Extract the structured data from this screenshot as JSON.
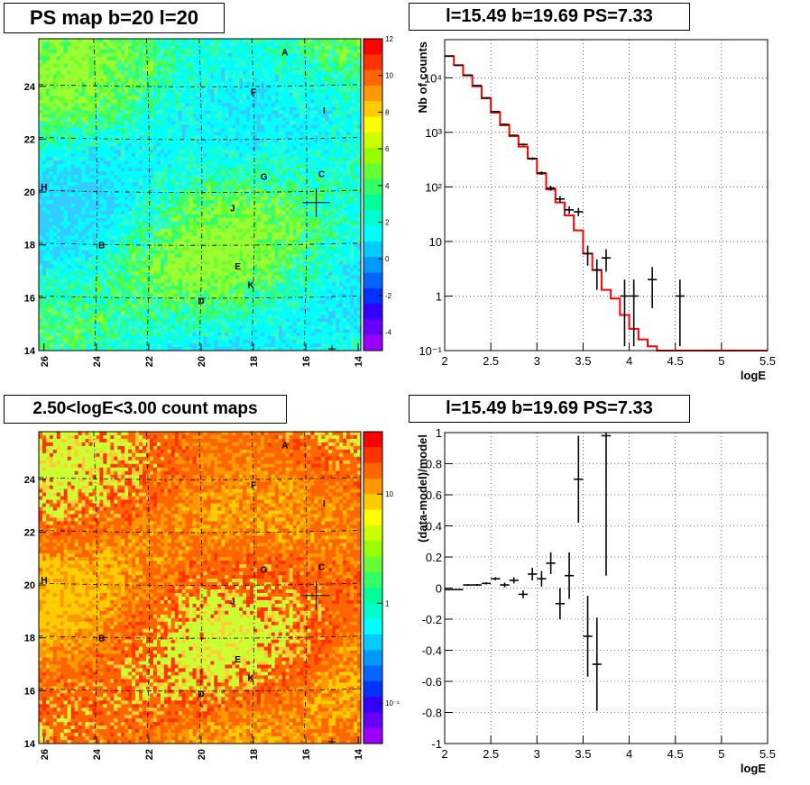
{
  "titles": {
    "map_top": "PS map b=20 l=20",
    "spectrum": "l=15.49 b=19.69 PS=7.33",
    "map_bottom": "2.50<logE<3.00 count maps",
    "residual": "l=15.49 b=19.69 PS=7.33"
  },
  "chart_data": [
    {
      "type": "heatmap",
      "name": "ps-map",
      "title": "PS map b=20 l=20",
      "x_ticks": [
        "26",
        "24",
        "22",
        "20",
        "18",
        "16",
        "14"
      ],
      "y_ticks": [
        "14",
        "16",
        "18",
        "20",
        "22",
        "24"
      ],
      "xlim": [
        26.2,
        13.9
      ],
      "ylim": [
        14,
        25.8
      ],
      "colorbar": {
        "min": -5,
        "max": 12,
        "ticks": [
          "12",
          "10",
          "8",
          "6",
          "4",
          "2",
          "0",
          "-2",
          "-4"
        ],
        "scale": "linear"
      },
      "dominant_colors": [
        "#00ffff",
        "#33ff66",
        "#66ff33"
      ],
      "markers": {
        "cross": [
          15.6,
          19.6
        ],
        "small_cross": [
          15.0,
          14.0
        ]
      },
      "labels": [
        {
          "text": "A",
          "l": 16.8,
          "b": 25.3
        },
        {
          "text": "F",
          "l": 18.0,
          "b": 23.8
        },
        {
          "text": "I",
          "l": 15.3,
          "b": 23.1
        },
        {
          "text": "C",
          "l": 15.4,
          "b": 20.7
        },
        {
          "text": "G",
          "l": 17.6,
          "b": 20.6
        },
        {
          "text": "H",
          "l": 26.0,
          "b": 20.2
        },
        {
          "text": "J",
          "l": 18.8,
          "b": 19.4
        },
        {
          "text": "B",
          "l": 23.8,
          "b": 18.0
        },
        {
          "text": "E",
          "l": 18.6,
          "b": 17.2
        },
        {
          "text": "K",
          "l": 18.1,
          "b": 16.5
        },
        {
          "text": "D",
          "l": 20.0,
          "b": 15.9
        }
      ]
    },
    {
      "type": "line",
      "name": "spectrum",
      "title": "l=15.49 b=19.69 PS=7.33",
      "xlabel": "logE",
      "ylabel": "Nb of counts",
      "yscale": "log",
      "xlim": [
        2,
        5.5
      ],
      "ylim": [
        0.1,
        50000
      ],
      "x_ticks": [
        "2",
        "2.5",
        "3",
        "3.5",
        "4",
        "4.5",
        "5",
        "5.5"
      ],
      "y_ticks": [
        {
          "v": 0.1,
          "label": "10⁻¹"
        },
        {
          "v": 1,
          "label": "1"
        },
        {
          "v": 10,
          "label": "10"
        },
        {
          "v": 100,
          "label": "10²"
        },
        {
          "v": 1000,
          "label": "10³"
        },
        {
          "v": 10000,
          "label": "10⁴"
        }
      ],
      "grid": true,
      "series": [
        {
          "color": "#ff0000",
          "kind": "step",
          "bin_width": 0.1,
          "x": [
            2.05,
            2.15,
            2.25,
            2.35,
            2.45,
            2.55,
            2.65,
            2.75,
            2.85,
            2.95,
            3.05,
            3.15,
            3.25,
            3.35,
            3.45,
            3.55,
            3.65,
            3.75,
            3.85,
            3.95,
            4.05,
            4.15,
            4.25,
            4.35,
            4.45,
            4.55,
            4.65,
            4.75,
            4.85,
            4.95,
            5.05,
            5.15,
            5.25,
            5.35,
            5.45
          ],
          "values": [
            25000,
            17000,
            11000,
            7000,
            4200,
            2300,
            1350,
            850,
            550,
            330,
            175,
            90,
            52,
            30,
            16,
            6,
            3,
            1.3,
            0.9,
            0.45,
            0.25,
            0.16,
            0.12,
            0.1,
            0.1,
            0.1,
            0.1,
            0.1,
            0.1,
            0.1,
            0.1,
            0.1,
            0.1,
            0.1,
            0.1
          ]
        },
        {
          "color": "#000000",
          "kind": "errorbar",
          "points": [
            {
              "x": 2.05,
              "y": 25000,
              "lo": 24800,
              "hi": 25200
            },
            {
              "x": 2.15,
              "y": 17000,
              "lo": 16870,
              "hi": 17130
            },
            {
              "x": 2.25,
              "y": 11200,
              "lo": 11090,
              "hi": 11310
            },
            {
              "x": 2.35,
              "y": 7200,
              "lo": 7110,
              "hi": 7290
            },
            {
              "x": 2.45,
              "y": 4300,
              "lo": 4230,
              "hi": 4370
            },
            {
              "x": 2.55,
              "y": 2400,
              "lo": 2350,
              "hi": 2450
            },
            {
              "x": 2.65,
              "y": 1400,
              "lo": 1360,
              "hi": 1440
            },
            {
              "x": 2.75,
              "y": 880,
              "lo": 850,
              "hi": 910
            },
            {
              "x": 2.85,
              "y": 600,
              "lo": 575,
              "hi": 625
            },
            {
              "x": 2.95,
              "y": 330,
              "lo": 312,
              "hi": 348
            },
            {
              "x": 3.05,
              "y": 180,
              "lo": 167,
              "hi": 193
            },
            {
              "x": 3.15,
              "y": 95,
              "lo": 85,
              "hi": 105
            },
            {
              "x": 3.25,
              "y": 60,
              "lo": 52,
              "hi": 68
            },
            {
              "x": 3.35,
              "y": 38,
              "lo": 32,
              "hi": 44
            },
            {
              "x": 3.45,
              "y": 35,
              "lo": 29,
              "hi": 41
            },
            {
              "x": 3.55,
              "y": 6,
              "lo": 3.6,
              "hi": 8.4
            },
            {
              "x": 3.65,
              "y": 3,
              "lo": 1.3,
              "hi": 4.7
            },
            {
              "x": 3.75,
              "y": 5,
              "lo": 2.8,
              "hi": 7.2
            },
            {
              "x": 3.95,
              "y": 1,
              "lo": 0.12,
              "hi": 2
            },
            {
              "x": 4.05,
              "y": 1,
              "lo": 0.12,
              "hi": 2
            },
            {
              "x": 4.25,
              "y": 2,
              "lo": 0.6,
              "hi": 3.4
            },
            {
              "x": 4.55,
              "y": 1,
              "lo": 0.12,
              "hi": 2
            }
          ]
        }
      ]
    },
    {
      "type": "heatmap",
      "name": "count-map",
      "title": "2.50<logE<3.00 count maps",
      "x_ticks": [
        "26",
        "24",
        "22",
        "20",
        "18",
        "16",
        "14"
      ],
      "y_ticks": [
        "14",
        "16",
        "18",
        "20",
        "22",
        "24"
      ],
      "xlim": [
        26.2,
        13.9
      ],
      "ylim": [
        14,
        25.8
      ],
      "colorbar": {
        "scale": "log",
        "ticks": [
          "10",
          "1",
          "10⁻¹"
        ]
      },
      "dominant_colors": [
        "#ff6600",
        "#ff9900",
        "#ffcc00"
      ],
      "markers": {
        "cross": [
          15.6,
          19.6
        ],
        "small_cross": [
          15.0,
          14.0
        ]
      },
      "labels": [
        {
          "text": "A",
          "l": 16.8,
          "b": 25.3
        },
        {
          "text": "F",
          "l": 18.0,
          "b": 23.8
        },
        {
          "text": "I",
          "l": 15.3,
          "b": 23.1
        },
        {
          "text": "C",
          "l": 15.4,
          "b": 20.7
        },
        {
          "text": "G",
          "l": 17.6,
          "b": 20.6
        },
        {
          "text": "H",
          "l": 26.0,
          "b": 20.2
        },
        {
          "text": "J",
          "l": 18.8,
          "b": 19.4
        },
        {
          "text": "B",
          "l": 23.8,
          "b": 18.0
        },
        {
          "text": "E",
          "l": 18.6,
          "b": 17.2
        },
        {
          "text": "K",
          "l": 18.1,
          "b": 16.5
        },
        {
          "text": "D",
          "l": 20.0,
          "b": 15.9
        }
      ]
    },
    {
      "type": "scatter",
      "name": "residuals",
      "title": "l=15.49 b=19.69 PS=7.33",
      "xlabel": "logE",
      "ylabel": "(data-model)/model",
      "xlim": [
        2,
        5.5
      ],
      "ylim": [
        -1,
        1
      ],
      "x_ticks": [
        "2",
        "2.5",
        "3",
        "3.5",
        "4",
        "4.5",
        "5",
        "5.5"
      ],
      "y_ticks": [
        "-1",
        "-0.8",
        "-0.6",
        "-0.4",
        "-0.2",
        "0",
        "0.2",
        "0.4",
        "0.6",
        "0.8",
        "1"
      ],
      "grid": true,
      "points": [
        {
          "x": 2.05,
          "y": -0.01,
          "err": 0.003
        },
        {
          "x": 2.15,
          "y": -0.01,
          "err": 0.004
        },
        {
          "x": 2.25,
          "y": 0.02,
          "err": 0.005
        },
        {
          "x": 2.35,
          "y": 0.02,
          "err": 0.006
        },
        {
          "x": 2.45,
          "y": 0.03,
          "err": 0.007
        },
        {
          "x": 2.55,
          "y": 0.06,
          "err": 0.01
        },
        {
          "x": 2.65,
          "y": 0.02,
          "err": 0.015
        },
        {
          "x": 2.75,
          "y": 0.05,
          "err": 0.02
        },
        {
          "x": 2.85,
          "y": -0.04,
          "err": 0.025
        },
        {
          "x": 2.95,
          "y": 0.09,
          "err": 0.04
        },
        {
          "x": 3.05,
          "y": 0.06,
          "err": 0.05
        },
        {
          "x": 3.15,
          "y": 0.16,
          "err": 0.07
        },
        {
          "x": 3.25,
          "y": -0.1,
          "err": 0.1
        },
        {
          "x": 3.35,
          "y": 0.08,
          "err": 0.15
        },
        {
          "x": 3.45,
          "y": 0.7,
          "err": 0.28
        },
        {
          "x": 3.55,
          "y": -0.31,
          "err": 0.26
        },
        {
          "x": 3.65,
          "y": -0.49,
          "err": 0.3
        },
        {
          "x": 3.75,
          "y": 0.98,
          "err": 0.9
        }
      ]
    }
  ]
}
